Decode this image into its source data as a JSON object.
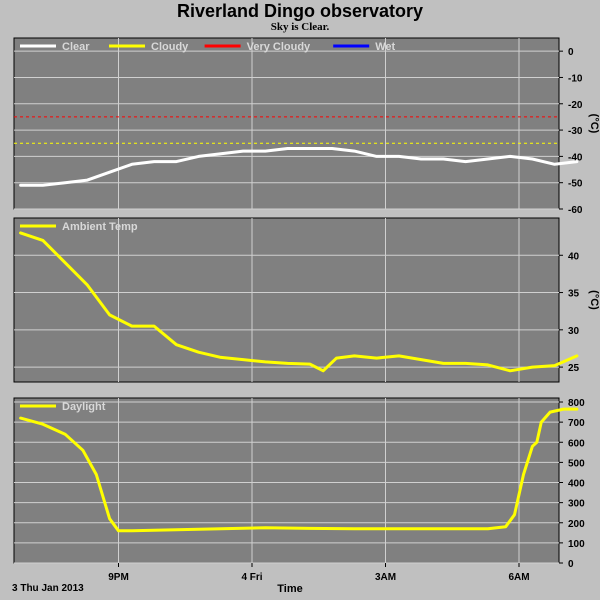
{
  "title": "Riverland Dingo observatory",
  "subtitle": "Sky is Clear.",
  "date_label": "3 Thu Jan 2013",
  "time_label": "Time",
  "x_ticks": [
    "9PM",
    "4 Fri",
    "3AM",
    "6AM"
  ],
  "colors": {
    "background": "#c0c0c0",
    "plot_bg": "#808080",
    "grid": "#d0d0d0",
    "clear": "#ffffff",
    "cloudy": "#ffff00",
    "very_cloudy": "#ff0000",
    "wet": "#0000ff"
  },
  "chart_data": [
    {
      "type": "line",
      "id": "sky",
      "ylabel": "(°C)",
      "ylim": [
        -60,
        5
      ],
      "yticks": [
        0,
        -10,
        -20,
        -30,
        -40,
        -50,
        -60
      ],
      "x_hours": [
        18,
        20.5
      ],
      "legend": [
        {
          "name": "Clear",
          "color": "#ffffff"
        },
        {
          "name": "Cloudy",
          "color": "#ffff00"
        },
        {
          "name": "Very Cloudy",
          "color": "#ff0000"
        },
        {
          "name": "Wet",
          "color": "#0000ff"
        }
      ],
      "thresholds": [
        {
          "name": "Very Cloudy",
          "value": -25,
          "color": "#ff0000"
        },
        {
          "name": "Cloudy",
          "value": -35,
          "color": "#ffff00"
        }
      ],
      "series": [
        {
          "name": "Clear",
          "color": "#ffffff",
          "x": [
            18.8,
            19.3,
            19.8,
            20.3,
            20.8,
            21.3,
            21.8,
            22.3,
            22.8,
            23.3,
            23.8,
            24.3,
            24.8,
            25.3,
            25.8,
            26.3,
            26.8,
            27.3,
            27.8,
            28.3,
            28.8,
            29.3,
            29.8,
            30.3,
            30.8,
            31.3
          ],
          "values": [
            -51,
            -51,
            -50,
            -49,
            -46,
            -43,
            -42,
            -42,
            -40,
            -39,
            -38,
            -38,
            -37,
            -37,
            -37,
            -38,
            -40,
            -40,
            -41,
            -41,
            -42,
            -41,
            -40,
            -41,
            -43,
            -42
          ]
        }
      ]
    },
    {
      "type": "line",
      "id": "ambient",
      "ylabel": "(°C)",
      "ylim": [
        23,
        45
      ],
      "yticks": [
        25,
        30,
        35,
        40
      ],
      "legend": [
        {
          "name": "Ambient Temp",
          "color": "#ffff00"
        }
      ],
      "series": [
        {
          "name": "Ambient Temp",
          "color": "#ffff00",
          "x": [
            18.8,
            19.3,
            19.8,
            20.3,
            20.8,
            21.3,
            21.8,
            22.3,
            22.8,
            23.3,
            23.8,
            24.3,
            24.8,
            25.3,
            25.6,
            25.9,
            26.3,
            26.8,
            27.3,
            27.8,
            28.3,
            28.8,
            29.3,
            29.8,
            30.3,
            30.8,
            31.3
          ],
          "values": [
            43,
            42,
            39,
            36,
            32,
            30.5,
            30.5,
            28,
            27,
            26.3,
            26,
            25.7,
            25.5,
            25.4,
            24.5,
            26.2,
            26.5,
            26.2,
            26.5,
            26,
            25.5,
            25.5,
            25.3,
            24.5,
            25,
            25.2,
            26.5
          ]
        }
      ]
    },
    {
      "type": "line",
      "id": "daylight",
      "ylabel": "",
      "ylim": [
        0,
        820
      ],
      "yticks": [
        0,
        100,
        200,
        300,
        400,
        500,
        600,
        700,
        800
      ],
      "legend": [
        {
          "name": "Daylight",
          "color": "#ffff00"
        }
      ],
      "series": [
        {
          "name": "Daylight",
          "color": "#ffff00",
          "x": [
            18.8,
            19.3,
            19.8,
            20.2,
            20.5,
            20.8,
            21.0,
            21.3,
            22.3,
            23.3,
            24.3,
            25.3,
            26.3,
            27.3,
            28.3,
            29.3,
            29.7,
            29.9,
            30.1,
            30.3,
            30.4,
            30.5,
            30.7,
            31.0,
            31.3
          ],
          "values": [
            720,
            690,
            640,
            560,
            440,
            220,
            160,
            160,
            165,
            170,
            175,
            172,
            170,
            170,
            170,
            170,
            180,
            240,
            440,
            580,
            600,
            700,
            750,
            765,
            765
          ]
        }
      ]
    }
  ]
}
